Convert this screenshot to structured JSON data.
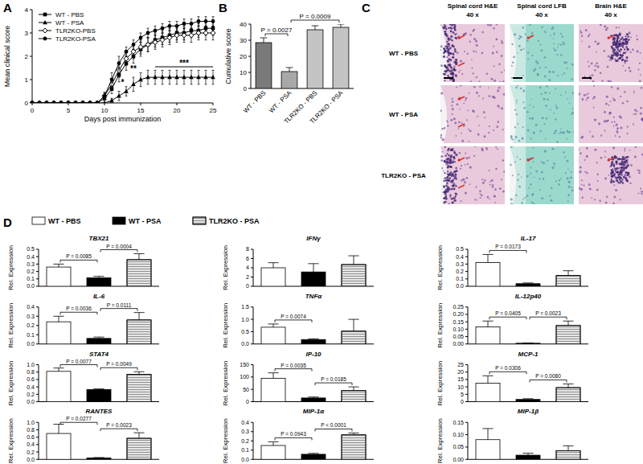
{
  "panel_labels": [
    "A",
    "B",
    "C",
    "D"
  ],
  "chart_data": [
    {
      "type": "line",
      "x_label": "Days post immunization",
      "y_label": "Mean clinical score",
      "legend": "upper-left",
      "x": [
        0,
        1,
        2,
        3,
        4,
        5,
        6,
        7,
        8,
        9,
        10,
        11,
        12,
        13,
        14,
        15,
        16,
        17,
        18,
        19,
        20,
        21,
        22,
        23,
        24,
        25
      ],
      "xlim": [
        0,
        25
      ],
      "xticks": [
        0,
        5,
        10,
        15,
        20,
        25
      ],
      "ylim": [
        0,
        4
      ],
      "yticks": [
        0,
        1,
        2,
        3,
        4
      ],
      "series": [
        {
          "name": "WT - PBS",
          "color": "#000000",
          "marker": "square",
          "values": [
            0,
            0,
            0,
            0,
            0,
            0,
            0,
            0,
            0,
            0,
            0.2,
            0.6,
            1.2,
            1.7,
            2.0,
            2.3,
            2.5,
            2.7,
            2.8,
            2.9,
            3.0,
            3.0,
            3.1,
            3.1,
            3.2,
            3.2
          ],
          "errors": [
            0,
            0,
            0,
            0,
            0,
            0,
            0,
            0,
            0,
            0,
            0.1,
            0.2,
            0.3,
            0.3,
            0.3,
            0.3,
            0.3,
            0.3,
            0.3,
            0.3,
            0.3,
            0.3,
            0.3,
            0.3,
            0.3,
            0.3
          ]
        },
        {
          "name": "WT - PSA",
          "color": "#000000",
          "marker": "triangle",
          "values": [
            0,
            0,
            0,
            0,
            0,
            0,
            0,
            0,
            0,
            0,
            0,
            0.1,
            0.3,
            0.5,
            0.8,
            1.0,
            1.1,
            1.1,
            1.1,
            1.1,
            1.1,
            1.1,
            1.1,
            1.1,
            1.1,
            1.1
          ],
          "errors": [
            0,
            0,
            0,
            0,
            0,
            0,
            0,
            0,
            0,
            0,
            0,
            0.1,
            0.2,
            0.2,
            0.3,
            0.3,
            0.3,
            0.3,
            0.3,
            0.3,
            0.3,
            0.3,
            0.3,
            0.3,
            0.3,
            0.3
          ]
        },
        {
          "name": "TLR2KO-PBS",
          "color": "#000000",
          "marker": "open-diamond",
          "values": [
            0,
            0,
            0,
            0,
            0,
            0,
            0,
            0,
            0,
            0,
            0.3,
            0.8,
            1.4,
            1.9,
            2.2,
            2.4,
            2.5,
            2.6,
            2.7,
            2.8,
            2.9,
            2.9,
            2.9,
            3.0,
            3.0,
            3.0
          ],
          "errors": [
            0,
            0,
            0,
            0,
            0,
            0,
            0,
            0,
            0,
            0,
            0.15,
            0.25,
            0.3,
            0.3,
            0.3,
            0.3,
            0.3,
            0.3,
            0.3,
            0.3,
            0.3,
            0.3,
            0.3,
            0.3,
            0.3,
            0.3
          ]
        },
        {
          "name": "TLR2KO-PSA",
          "color": "#000000",
          "marker": "circle",
          "values": [
            0,
            0,
            0,
            0,
            0,
            0,
            0,
            0,
            0,
            0,
            0.3,
            1.0,
            1.7,
            2.2,
            2.5,
            2.8,
            3.0,
            3.1,
            3.2,
            3.3,
            3.3,
            3.4,
            3.4,
            3.5,
            3.5,
            3.5
          ],
          "errors": [
            0,
            0,
            0,
            0,
            0,
            0,
            0,
            0,
            0,
            0,
            0.15,
            0.3,
            0.3,
            0.2,
            0.2,
            0.2,
            0.2,
            0.2,
            0.2,
            0.2,
            0.2,
            0.2,
            0.2,
            0.2,
            0.2,
            0.2
          ]
        }
      ],
      "annotations": [
        {
          "text": "*",
          "x": 12.5,
          "y": 0.75
        },
        {
          "text": "**",
          "x": 14,
          "y": 1.35
        },
        {
          "text": "***",
          "x": [
            17,
            25
          ],
          "y": 1.55
        }
      ]
    },
    {
      "type": "bar",
      "y_label": "Cumulative score",
      "categories": [
        "WT - PBS",
        "WT - PSA",
        "TLR2KO - PBS",
        "TLR2KO - PSA"
      ],
      "values": [
        28.5,
        10.5,
        36.5,
        38
      ],
      "errors": [
        3,
        2.5,
        2.5,
        2
      ],
      "colors": [
        "#7a7a7a",
        "#a8a8a8",
        "#c4c4c4",
        "#c4c4c4"
      ],
      "ylim": [
        0,
        40
      ],
      "yticks": [
        0,
        10,
        20,
        30,
        40
      ],
      "comparisons": [
        {
          "between": [
            "WT - PBS",
            "WT - PSA"
          ],
          "label": "P = 0.0027"
        },
        {
          "between": [
            "WT - PSA",
            "TLR2KO - PSA"
          ],
          "label": "P = 0.0009"
        }
      ]
    },
    {
      "type": "bar",
      "title": "TBX21",
      "y_label": "Rel. Expression",
      "values": [
        0.26,
        0.115,
        0.36
      ],
      "errors": [
        0.04,
        0.02,
        0.08
      ],
      "ylim": [
        0,
        0.5
      ],
      "yticks": [
        {
          "value": 0,
          "label": "0.0"
        },
        0.1,
        0.2,
        0.3,
        0.4,
        0.5
      ],
      "comparisons": [
        {
          "between": [
            "WT - PBS",
            "WT - PSA"
          ],
          "label": "P = 0.0085"
        },
        {
          "between": [
            "WT - PSA",
            "TLR2KO - PSA"
          ],
          "label": "P = 0.0004"
        }
      ]
    },
    {
      "type": "bar",
      "title": "IFNγ",
      "y_label": "Rel. Expression",
      "values": [
        4.0,
        3.1,
        4.7
      ],
      "errors": [
        1.1,
        1.8,
        1.9
      ],
      "ylim": [
        0,
        8
      ],
      "yticks": [
        0,
        2,
        4,
        6,
        8
      ],
      "comparisons": []
    },
    {
      "type": "bar",
      "title": "IL-17",
      "y_label": "Rel. Expression",
      "values": [
        0.32,
        0.035,
        0.145
      ],
      "errors": [
        0.11,
        0.01,
        0.065
      ],
      "ylim": [
        0,
        0.5
      ],
      "yticks": [
        {
          "value": 0,
          "label": "0.0"
        },
        0.1,
        0.2,
        0.3,
        0.4,
        0.5
      ],
      "comparisons": [
        {
          "between": [
            "WT - PBS",
            "WT - PSA"
          ],
          "label": "P = 0.0173"
        }
      ]
    },
    {
      "type": "bar",
      "title": "IL-6",
      "y_label": "Rel. Expression",
      "values": [
        0.24,
        0.06,
        0.26
      ],
      "errors": [
        0.06,
        0.015,
        0.08
      ],
      "ylim": [
        0,
        0.4
      ],
      "yticks": [
        {
          "value": 0,
          "label": "0.0"
        },
        0.1,
        0.2,
        0.3,
        0.4
      ],
      "comparisons": [
        {
          "between": [
            "WT - PBS",
            "WT - PSA"
          ],
          "label": "P = 0.0036"
        },
        {
          "between": [
            "WT - PSA",
            "TLR2KO - PSA"
          ],
          "label": "P = 0.0111"
        }
      ]
    },
    {
      "type": "bar",
      "title": "TNFα",
      "y_label": "Rel. Expression",
      "values": [
        0.68,
        0.18,
        0.52
      ],
      "errors": [
        0.13,
        0.03,
        0.48
      ],
      "ylim": [
        0,
        1.5
      ],
      "yticks": [
        {
          "value": 0,
          "label": "0.0"
        },
        0.5,
        {
          "value": 1,
          "label": "1.0"
        },
        1.5
      ],
      "comparisons": [
        {
          "between": [
            "WT - PBS",
            "WT - PSA"
          ],
          "label": "P = 0.0074"
        }
      ]
    },
    {
      "type": "bar",
      "title": "IL-12p40",
      "y_label": "Rel. Expression",
      "values": [
        0.115,
        0.005,
        0.125
      ],
      "errors": [
        0.04,
        0.002,
        0.03
      ],
      "ylim": [
        0,
        0.25
      ],
      "yticks": [
        {
          "value": 0,
          "label": "0.00"
        },
        0.05,
        {
          "value": 0.1,
          "label": "0.10"
        },
        0.15,
        {
          "value": 0.2,
          "label": "0.20"
        },
        0.25
      ],
      "comparisons": [
        {
          "between": [
            "WT - PBS",
            "WT - PSA"
          ],
          "label": "P = 0.0405"
        },
        {
          "between": [
            "WT - PSA",
            "TLR2KO - PSA"
          ],
          "label": "P = 0.0023"
        }
      ]
    },
    {
      "type": "bar",
      "title": "STAT4",
      "y_label": "Rel. Expression",
      "values": [
        0.82,
        0.33,
        0.74
      ],
      "errors": [
        0.09,
        0.015,
        0.07
      ],
      "ylim": [
        0,
        1
      ],
      "yticks": [
        {
          "value": 0,
          "label": "0.0"
        },
        0.2,
        0.4,
        0.6,
        0.8,
        {
          "value": 1,
          "label": "1.0"
        }
      ],
      "comparisons": [
        {
          "between": [
            "WT - PBS",
            "WT - PSA"
          ],
          "label": "P = 0.0077"
        },
        {
          "between": [
            "WT - PSA",
            "TLR2KO - PSA"
          ],
          "label": "P = 0.0049"
        }
      ]
    },
    {
      "type": "bar",
      "title": "IP-10",
      "y_label": "Rel. Expression",
      "values": [
        95,
        15,
        45
      ],
      "errors": [
        22,
        4,
        15
      ],
      "ylim": [
        0,
        150
      ],
      "yticks": [
        0,
        50,
        100,
        150
      ],
      "comparisons": [
        {
          "between": [
            "WT - PBS",
            "WT - PSA"
          ],
          "label": "P = 0.0035"
        },
        {
          "between": [
            "WT - PSA",
            "TLR2KO - PSA"
          ],
          "label": "P = 0.0185"
        }
      ]
    },
    {
      "type": "bar",
      "title": "MCP-1",
      "y_label": "Rel. Expression",
      "values": [
        12.5,
        1.5,
        9.5
      ],
      "errors": [
        5,
        0.5,
        2.5
      ],
      "ylim": [
        0,
        25
      ],
      "yticks": [
        0,
        5,
        10,
        15,
        20,
        25
      ],
      "comparisons": [
        {
          "between": [
            "WT - PBS",
            "WT - PSA"
          ],
          "label": "P = 0.0306"
        },
        {
          "between": [
            "WT - PSA",
            "TLR2KO - PSA"
          ],
          "label": "P = 0.0080"
        }
      ]
    },
    {
      "type": "bar",
      "title": "RANTES",
      "y_label": "Rel. Expression",
      "values": [
        0.7,
        0.04,
        0.57
      ],
      "errors": [
        0.25,
        0.01,
        0.15
      ],
      "ylim": [
        0,
        1
      ],
      "yticks": [
        {
          "value": 0,
          "label": "0.0"
        },
        0.2,
        0.4,
        0.6,
        0.8,
        {
          "value": 1,
          "label": "1.0"
        }
      ],
      "comparisons": [
        {
          "between": [
            "WT - PBS",
            "WT - PSA"
          ],
          "label": "P = 0.0277"
        },
        {
          "between": [
            "WT - PSA",
            "TLR2KO - PSA"
          ],
          "label": "P = 0.0023"
        }
      ]
    },
    {
      "type": "bar",
      "title": "MIP-1α",
      "y_label": "Rel. Expression",
      "values": [
        0.15,
        0.055,
        0.265
      ],
      "errors": [
        0.04,
        0.01,
        0.02
      ],
      "ylim": [
        0,
        0.4
      ],
      "yticks": [
        {
          "value": 0,
          "label": "0.0"
        },
        0.1,
        0.2,
        0.3,
        0.4
      ],
      "comparisons": [
        {
          "between": [
            "WT - PBS",
            "WT - PSA"
          ],
          "label": "P = 0.0943"
        },
        {
          "between": [
            "WT - PSA",
            "TLR2KO - PSA"
          ],
          "label": "P < 0.0001"
        }
      ]
    },
    {
      "type": "bar",
      "title": "MIP-1β",
      "y_label": "Rel. Expression",
      "values": [
        0.08,
        0.017,
        0.035
      ],
      "errors": [
        0.045,
        0.008,
        0.02
      ],
      "ylim": [
        0,
        0.15
      ],
      "yticks": [
        {
          "value": 0,
          "label": "0.00"
        },
        0.05,
        {
          "value": 0.1,
          "label": "0.10"
        },
        0.15
      ],
      "comparisons": []
    }
  ],
  "expression_legend": {
    "names": [
      "WT - PBS",
      "WT - PSA",
      "TLR2KO - PSA"
    ],
    "colors": [
      "#ffffff",
      "#000000",
      "#e6e6e6"
    ]
  },
  "histology": {
    "columns": [
      {
        "stain": "Spinal cord H&E",
        "magnification": "40 x"
      },
      {
        "stain": "Spinal cord LFB",
        "magnification": "40 x"
      },
      {
        "stain": "Brain H&E",
        "magnification": "40 x"
      }
    ],
    "rows": [
      "WT - PBS",
      "WT - PSA",
      "TLR2KO - PSA"
    ]
  }
}
